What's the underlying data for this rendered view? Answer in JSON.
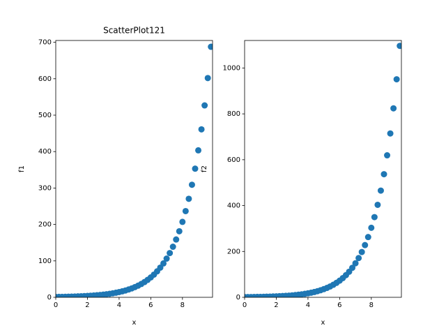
{
  "chart_data": [
    {
      "type": "scatter",
      "title": "ScatterPlot121",
      "xlabel": "x",
      "ylabel": "f1",
      "color": "#1f77b4",
      "x": [
        0,
        0.2,
        0.4,
        0.6,
        0.8,
        1.0,
        1.2,
        1.4,
        1.6,
        1.8,
        2.0,
        2.2,
        2.4,
        2.6,
        2.8,
        3.0,
        3.2,
        3.4,
        3.6,
        3.8,
        4.0,
        4.2,
        4.4,
        4.6,
        4.8,
        5.0,
        5.2,
        5.4,
        5.6,
        5.8,
        6.0,
        6.2,
        6.4,
        6.6,
        6.8,
        7.0,
        7.2,
        7.4,
        7.6,
        7.8,
        8.0,
        8.2,
        8.4,
        8.6,
        8.8,
        9.0,
        9.2,
        9.4,
        9.6,
        9.8
      ],
      "values": [
        1,
        1.14,
        1.31,
        1.49,
        1.7,
        1.95,
        2.23,
        2.54,
        2.91,
        3.32,
        3.79,
        4.34,
        4.95,
        5.66,
        6.47,
        7.39,
        8.44,
        9.65,
        11.02,
        12.59,
        14.39,
        16.44,
        18.79,
        21.47,
        24.53,
        28.03,
        32.03,
        36.6,
        41.82,
        47.78,
        54.6,
        62.38,
        71.28,
        81.45,
        93.07,
        106.3,
        121.5,
        138.8,
        158.7,
        181.3,
        207.1,
        236.7,
        270.4,
        309,
        353.1,
        403.4,
        461,
        526.8,
        601.8,
        687.7
      ],
      "xlim": [
        0,
        9.9
      ],
      "xticks": [
        0,
        2,
        4,
        6,
        8
      ],
      "ylim": [
        0,
        705
      ],
      "yticks": [
        0,
        100,
        200,
        300,
        400,
        500,
        600,
        700
      ]
    },
    {
      "type": "scatter",
      "xlabel": "x",
      "ylabel": "f2",
      "color": "#1f77b4",
      "x": [
        0,
        0.2,
        0.4,
        0.6,
        0.8,
        1.0,
        1.2,
        1.4,
        1.6,
        1.8,
        2.0,
        2.2,
        2.4,
        2.6,
        2.8,
        3.0,
        3.2,
        3.4,
        3.6,
        3.8,
        4.0,
        4.2,
        4.4,
        4.6,
        4.8,
        5.0,
        5.2,
        5.4,
        5.6,
        5.8,
        6.0,
        6.2,
        6.4,
        6.6,
        6.8,
        7.0,
        7.2,
        7.4,
        7.6,
        7.8,
        8.0,
        8.2,
        8.4,
        8.6,
        8.8,
        9.0,
        9.2,
        9.4,
        9.6,
        9.8
      ],
      "values": [
        1,
        1.15,
        1.33,
        1.54,
        1.77,
        2.04,
        2.36,
        2.72,
        3.14,
        3.62,
        4.17,
        4.81,
        5.55,
        6.41,
        7.39,
        8.52,
        9.83,
        11.34,
        13.08,
        15.09,
        17.41,
        20.09,
        23.17,
        26.73,
        30.84,
        35.58,
        41.05,
        47.35,
        54.6,
        62.99,
        72.66,
        83.82,
        96.69,
        111.5,
        128.7,
        148.4,
        171.2,
        197.5,
        227.8,
        262.8,
        303.2,
        349.8,
        403.4,
        465.4,
        536.9,
        619.3,
        714.5,
        824.2,
        950.8,
        1096.6
      ],
      "xlim": [
        0,
        9.9
      ],
      "xticks": [
        0,
        2,
        4,
        6,
        8
      ],
      "ylim": [
        0,
        1120
      ],
      "yticks": [
        0,
        200,
        400,
        600,
        800,
        1000
      ]
    }
  ]
}
